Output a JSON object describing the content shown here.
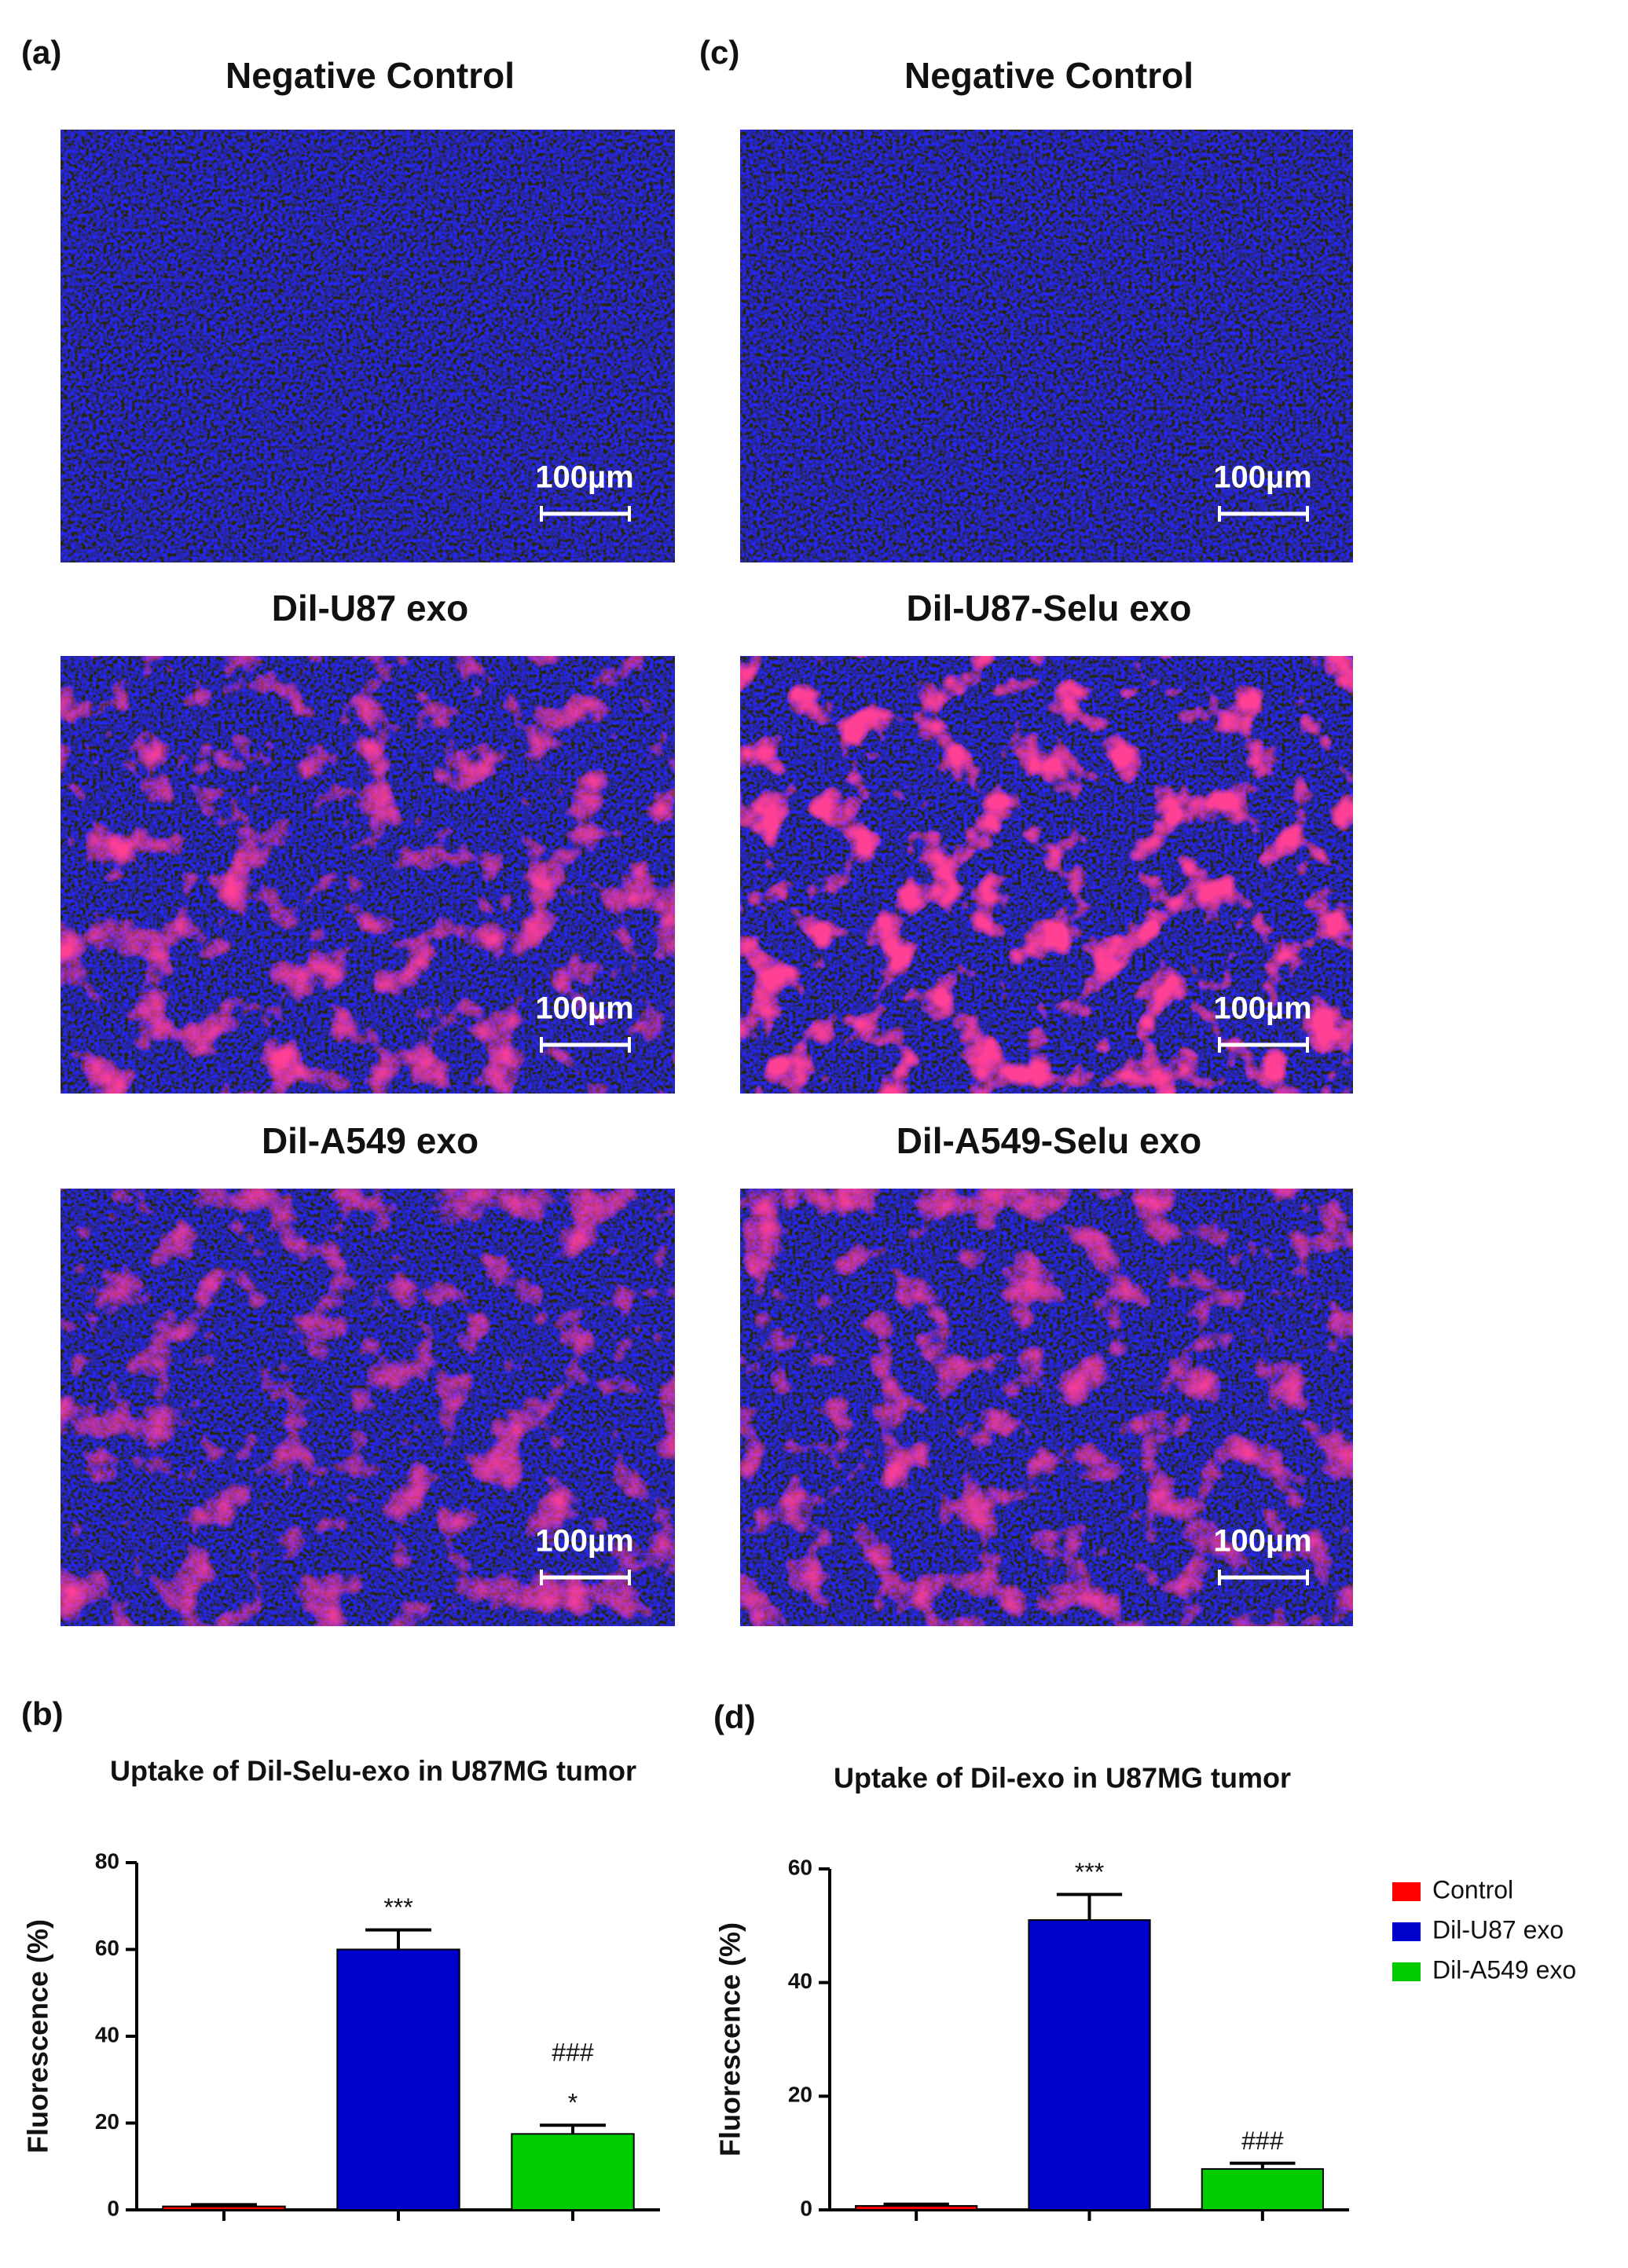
{
  "panels": [
    {
      "label": "(a)",
      "images": [
        {
          "title": "Negative Control",
          "scale_bar": "100µm"
        },
        {
          "title": "Dil-U87 exo",
          "scale_bar": "100µm"
        },
        {
          "title": "Dil-A549 exo",
          "scale_bar": "100µm"
        }
      ]
    },
    {
      "label": "(c)",
      "images": [
        {
          "title": "Negative Control",
          "scale_bar": "100µm"
        },
        {
          "title": "Dil-U87-Selu exo",
          "scale_bar": "100µm"
        },
        {
          "title": "Dil-A549-Selu exo",
          "scale_bar": "100µm"
        }
      ]
    }
  ],
  "chart_data": [
    {
      "type": "bar",
      "panel": "(b)",
      "title": "Uptake of Dil-Selu-exo in U87MG tumor",
      "y_label": "Fluorescence (%)",
      "categories": [
        null,
        null,
        null
      ],
      "series": [
        {
          "name": "Control",
          "color": "#ff0000",
          "values": [
            0.8,
            null,
            null
          ],
          "errors": [
            0.4,
            null,
            null
          ]
        },
        {
          "name": "Dil-U87 exo",
          "color": "#0000cc",
          "values": [
            null,
            60,
            null
          ],
          "errors": [
            null,
            4.5,
            null
          ],
          "annotations": [
            null,
            [
              "***"
            ],
            null
          ]
        },
        {
          "name": "Dil-A549 exo",
          "color": "#00cc00",
          "values": [
            null,
            null,
            17.5
          ],
          "errors": [
            null,
            null,
            2
          ],
          "annotations": [
            null,
            null,
            [
              "###",
              "*"
            ]
          ]
        }
      ],
      "ylim": [
        0,
        80
      ],
      "yticks": [
        0,
        20,
        40,
        60,
        80
      ],
      "legend": false
    },
    {
      "type": "bar",
      "panel": "(d)",
      "title": "Uptake of Dil-exo in U87MG tumor",
      "y_label": "Fluorescence (%)",
      "categories": [
        null,
        null,
        null
      ],
      "series": [
        {
          "name": "Control",
          "color": "#ff0000",
          "values": [
            0.7,
            null,
            null
          ],
          "errors": [
            0.3,
            null,
            null
          ]
        },
        {
          "name": "Dil-U87 exo",
          "color": "#0000cc",
          "values": [
            null,
            51,
            null
          ],
          "errors": [
            null,
            4.5,
            null
          ],
          "annotations": [
            null,
            [
              "***"
            ],
            null
          ]
        },
        {
          "name": "Dil-A549 exo",
          "color": "#00cc00",
          "values": [
            null,
            null,
            7.2
          ],
          "errors": [
            null,
            null,
            1
          ],
          "annotations": [
            null,
            null,
            [
              "###"
            ]
          ]
        }
      ],
      "ylim": [
        0,
        60
      ],
      "yticks": [
        0,
        20,
        40,
        60
      ],
      "legend": "right"
    }
  ]
}
